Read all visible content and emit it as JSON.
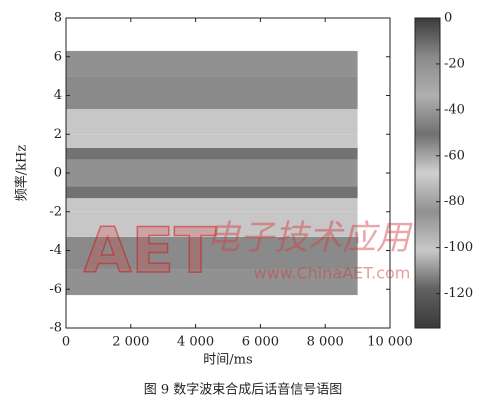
{
  "chart_data": {
    "type": "spectrogram",
    "xlabel": "时间/ms",
    "ylabel": "频率/kHz",
    "caption": "图 9  数字波束合成后话音信号语图",
    "watermark": {
      "logo": "AET",
      "brand": "电子技术应用",
      "url": "www.ChinaAET.com"
    },
    "xlim": [
      0,
      10000
    ],
    "xticks": [
      0,
      {
        "value": 2000,
        "label": "2 000"
      },
      {
        "value": 4000,
        "label": "4 000"
      },
      {
        "value": 6000,
        "label": "6 000"
      },
      {
        "value": 8000,
        "label": "8 000"
      },
      {
        "value": 10000,
        "label": "10 000"
      }
    ],
    "ylim": [
      -8,
      8
    ],
    "yticks": [
      -8,
      -6,
      -4,
      -2,
      0,
      2,
      4,
      6,
      8
    ],
    "time_range": [
      0,
      9000
    ],
    "freq_edges": [
      -6.3,
      -5,
      -3.3,
      -2,
      -1.3,
      -0.7,
      0.7,
      1.3,
      2,
      3.3,
      5,
      6.3
    ],
    "levels": [
      -20,
      -17,
      -101,
      -70,
      -50,
      -84,
      -50,
      -70,
      -101,
      -17,
      -20
    ],
    "clim": [
      -135,
      0
    ],
    "cticks": [
      0,
      -20,
      -40,
      -60,
      -80,
      -100,
      -120
    ],
    "colormap": [
      "#3a3a3a",
      "#8a8a8a",
      "#b0b0b0",
      "#707070",
      "#d0d0d0",
      "#909090",
      "#c8c8c8",
      "#606060",
      "#3a3a3a"
    ]
  }
}
